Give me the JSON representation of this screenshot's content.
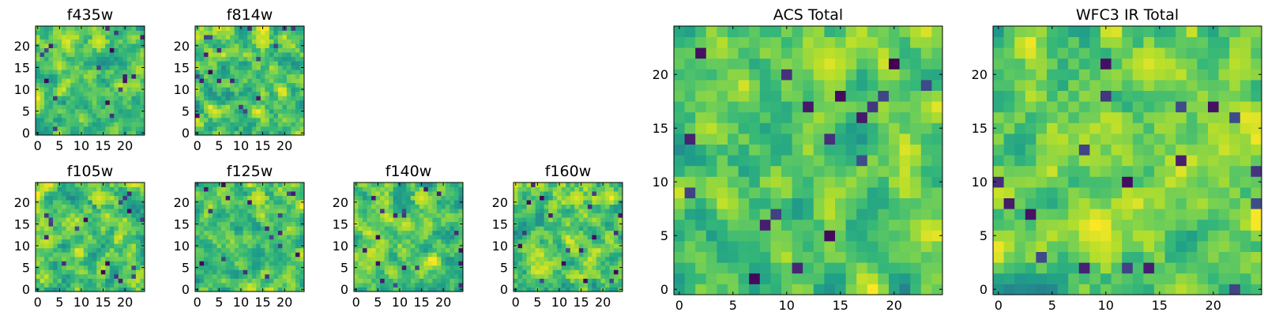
{
  "chart_data": [
    {
      "type": "heatmap",
      "title": "f435w",
      "grid": "25x25",
      "xticks": [
        "0",
        "5",
        "10",
        "15",
        "20"
      ],
      "yticks": [
        "0",
        "5",
        "10",
        "15",
        "20"
      ],
      "colormap": "viridis",
      "seed": 11
    },
    {
      "type": "heatmap",
      "title": "f814w",
      "grid": "25x25",
      "xticks": [
        "0",
        "5",
        "10",
        "15",
        "20"
      ],
      "yticks": [
        "0",
        "5",
        "10",
        "15",
        "20"
      ],
      "colormap": "viridis",
      "seed": 23
    },
    {
      "type": "heatmap",
      "title": "f105w",
      "grid": "25x25",
      "xticks": [
        "0",
        "5",
        "10",
        "15",
        "20"
      ],
      "yticks": [
        "0",
        "5",
        "10",
        "15",
        "20"
      ],
      "colormap": "viridis",
      "seed": 37
    },
    {
      "type": "heatmap",
      "title": "f125w",
      "grid": "25x25",
      "xticks": [
        "0",
        "5",
        "10",
        "15",
        "20"
      ],
      "yticks": [
        "0",
        "5",
        "10",
        "15",
        "20"
      ],
      "colormap": "viridis",
      "seed": 41
    },
    {
      "type": "heatmap",
      "title": "f140w",
      "grid": "25x25",
      "xticks": [
        "0",
        "5",
        "10",
        "15",
        "20"
      ],
      "yticks": [
        "0",
        "5",
        "10",
        "15",
        "20"
      ],
      "colormap": "viridis",
      "seed": 53
    },
    {
      "type": "heatmap",
      "title": "f160w",
      "grid": "25x25",
      "xticks": [
        "0",
        "5",
        "10",
        "15",
        "20"
      ],
      "yticks": [
        "0",
        "5",
        "10",
        "15",
        "20"
      ],
      "colormap": "viridis",
      "seed": 67
    },
    {
      "type": "heatmap",
      "title": "ACS Total",
      "grid": "25x25",
      "xticks": [
        "0",
        "5",
        "10",
        "15",
        "20"
      ],
      "yticks": [
        "0",
        "5",
        "10",
        "15",
        "20"
      ],
      "colormap": "viridis",
      "seed": 79
    },
    {
      "type": "heatmap",
      "title": "WFC3 IR Total",
      "grid": "25x25",
      "xticks": [
        "0",
        "5",
        "10",
        "15",
        "20"
      ],
      "yticks": [
        "0",
        "5",
        "10",
        "15",
        "20"
      ],
      "colormap": "viridis",
      "seed": 97
    }
  ]
}
